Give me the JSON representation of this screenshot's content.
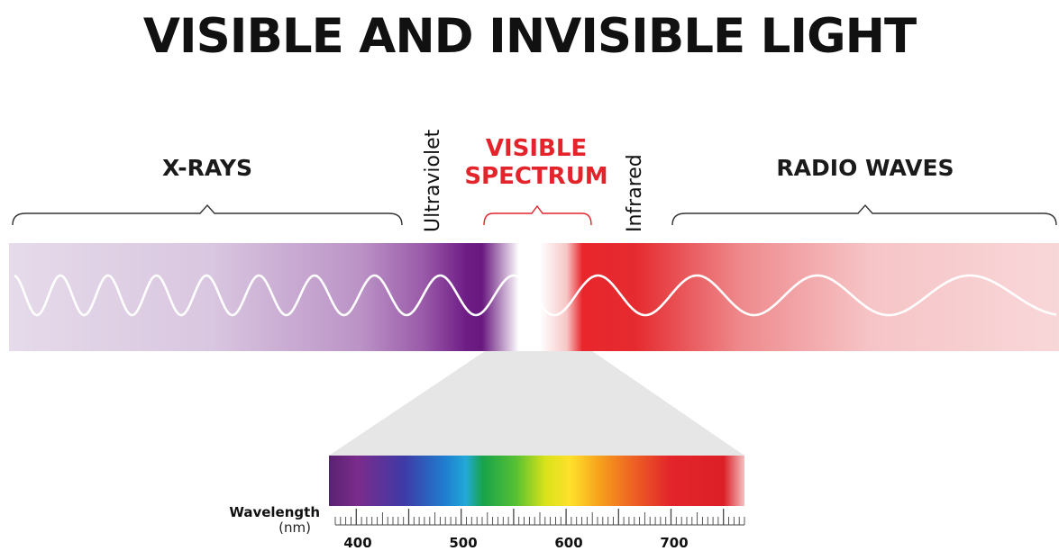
{
  "title": "VISIBLE AND INVISIBLE LIGHT",
  "regions": {
    "xrays": "X-RAYS",
    "ultraviolet": "Ultraviolet",
    "visible_line1": "VISIBLE",
    "visible_line2": "SPECTRUM",
    "infrared": "Infrared",
    "radio": "RADIO WAVES"
  },
  "scale": {
    "label": "Wavelength",
    "unit": "(nm)",
    "ticks": [
      "400",
      "500",
      "600",
      "700"
    ]
  },
  "colors": {
    "title": "#111111",
    "visible_label": "#e3242b",
    "wave": "#ffffff",
    "funnel": "#e6e6e6"
  }
}
